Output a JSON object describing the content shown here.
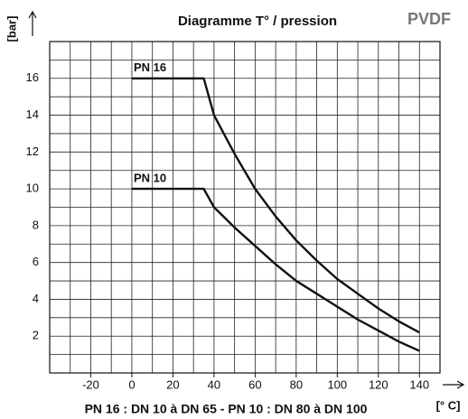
{
  "chart_data": {
    "type": "line",
    "title": "Diagramme  T° / pression",
    "subtitle": "PVDF",
    "y_label": "[bar]",
    "x_label": "[° C]",
    "footnote": "PN 16 : DN 10 à DN 65  -  PN 10 : DN 80 à DN 100",
    "x": [
      0,
      35,
      40,
      50,
      60,
      70,
      80,
      90,
      100,
      110,
      120,
      130,
      140
    ],
    "series": [
      {
        "name": "PN 16",
        "color": "#111111",
        "values": [
          16,
          16,
          14,
          11.9,
          10,
          8.5,
          7.2,
          6.1,
          5.1,
          4.3,
          3.5,
          2.8,
          2.2
        ]
      },
      {
        "name": "PN 10",
        "color": "#111111",
        "values": [
          10,
          10,
          9,
          7.9,
          6.9,
          5.9,
          5,
          4.3,
          3.6,
          2.9,
          2.3,
          1.7,
          1.2
        ]
      }
    ],
    "xlim": [
      -40,
      150
    ],
    "ylim": [
      0,
      18
    ],
    "xticks": [
      -20,
      0,
      20,
      40,
      60,
      80,
      100,
      120,
      140
    ],
    "yticks": [
      2,
      4,
      6,
      8,
      10,
      12,
      14,
      16
    ],
    "xgrid": [
      -30,
      -20,
      -10,
      0,
      10,
      20,
      30,
      40,
      50,
      60,
      70,
      80,
      90,
      100,
      110,
      120,
      130,
      140
    ],
    "ygrid": [
      1,
      2,
      3,
      4,
      5,
      6,
      7,
      8,
      9,
      10,
      11,
      12,
      13,
      14,
      15,
      16,
      17
    ],
    "grid": true
  }
}
